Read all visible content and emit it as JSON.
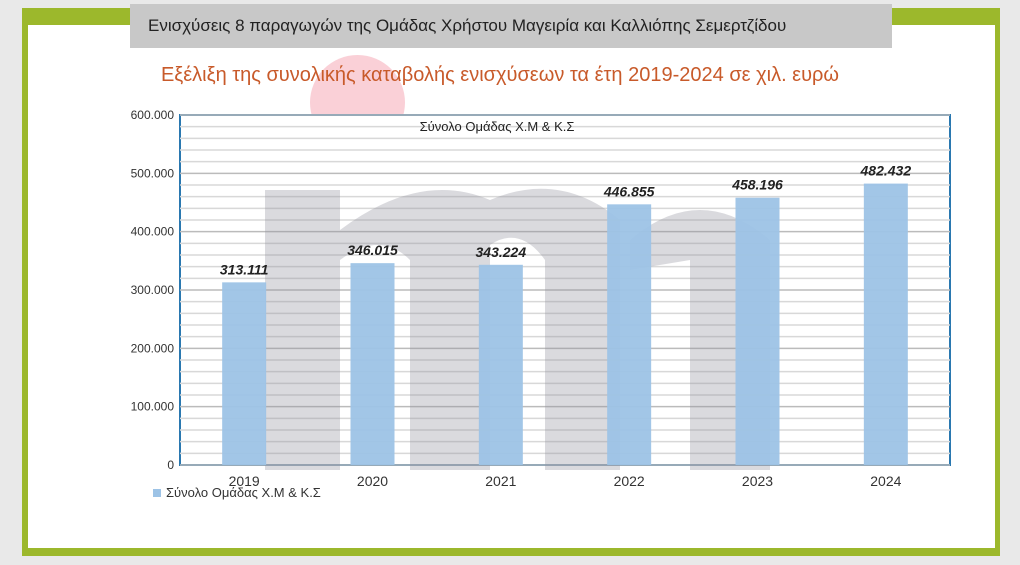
{
  "header": {
    "title": "Ενισχύσεις  8 παραγωγών της Ομάδας Χρήστου Μαγειρία  και  Καλλιόπης Σεμερτζίδου"
  },
  "colors": {
    "frame": "#9cb82c",
    "bar": "#9dc3e6",
    "title_text": "#c85a2a"
  },
  "chart_data": {
    "type": "bar",
    "title": "Εξέλιξη της συνολικής καταβολής ενισχύσεων τα έτη 2019-2024 σε χιλ. ευρώ",
    "plot_title": "Σύνολο Ομάδας Χ.Μ & Κ.Σ",
    "categories": [
      "2019",
      "2020",
      "2021",
      "2022",
      "2023",
      "2024"
    ],
    "series": [
      {
        "name": "Σύνολο Ομάδας Χ.Μ & Κ.Σ",
        "values": [
          313111,
          346015,
          343224,
          446855,
          458196,
          482432
        ]
      }
    ],
    "data_labels": [
      "313.111",
      "346.015",
      "343.224",
      "446.855",
      "458.196",
      "482.432"
    ],
    "yticks": [
      "0",
      "100.000",
      "200.000",
      "300.000",
      "400.000",
      "500.000",
      "600.000"
    ],
    "ylim": [
      0,
      600000
    ],
    "grid": true,
    "legend": "bottom-left"
  }
}
